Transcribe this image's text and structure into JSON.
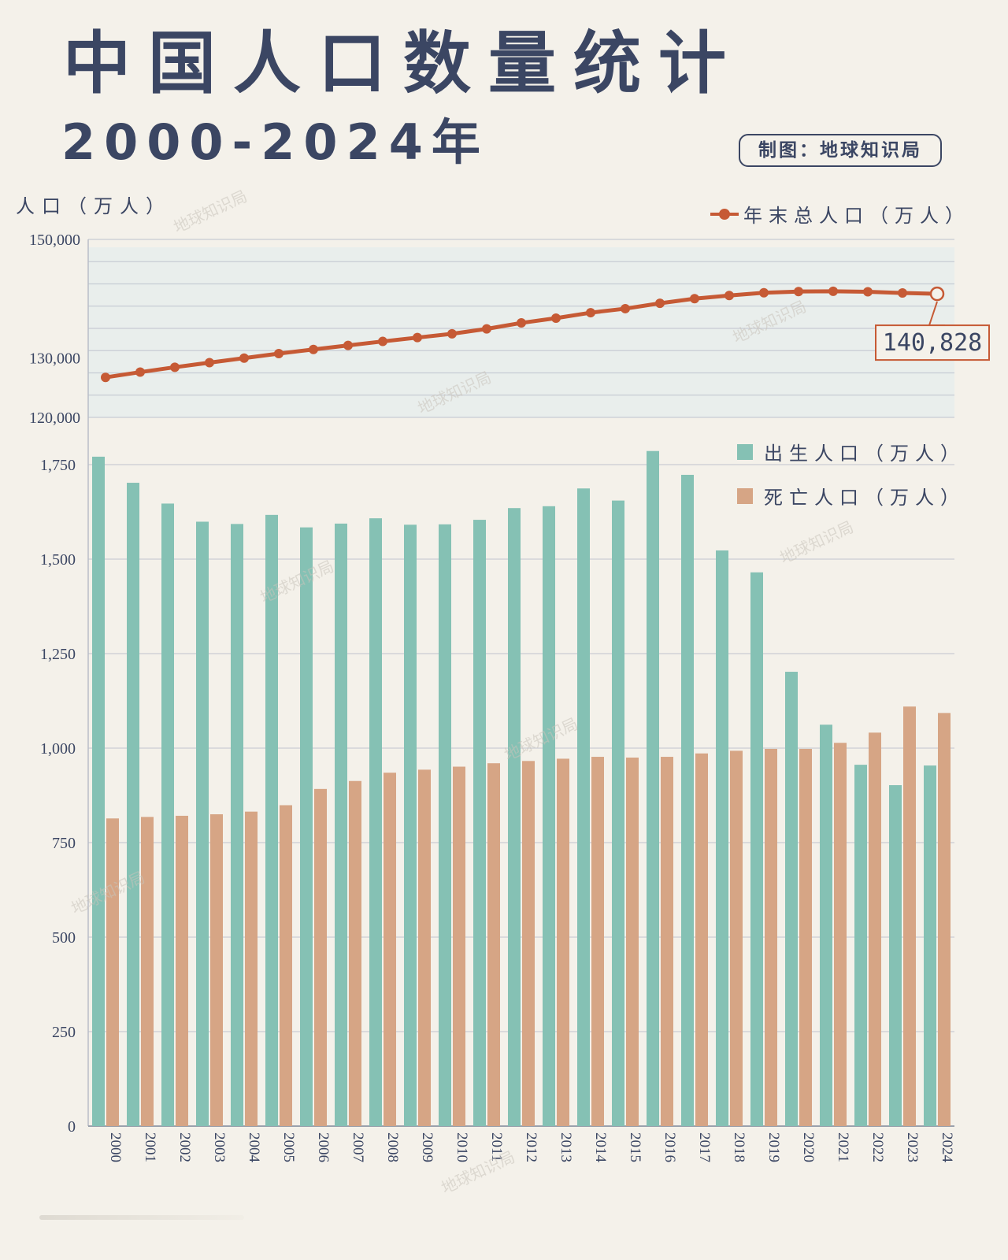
{
  "header": {
    "title": "中国人口数量统计",
    "subtitle": "2000-2024年",
    "credit": "制图：地球知识局"
  },
  "watermark": "地球知识局",
  "y_unit_label": "人口（万人）",
  "legend": {
    "total": "年末总人口（万人）",
    "births": "出生人口（万人）",
    "deaths": "死亡人口（万人）"
  },
  "colors": {
    "total_line": "#c65a35",
    "births_bar": "#85c1b4",
    "deaths_bar": "#d6a585",
    "text": "#3b4663",
    "line_panel_bg": "#e9eeec",
    "background": "#f4f1ea"
  },
  "callout": "140,828",
  "chart_data": [
    {
      "type": "line",
      "series_name": "年末总人口（万人）",
      "x": [
        "2000",
        "2001",
        "2002",
        "2003",
        "2004",
        "2005",
        "2006",
        "2007",
        "2008",
        "2009",
        "2010",
        "2011",
        "2012",
        "2013",
        "2014",
        "2015",
        "2016",
        "2017",
        "2018",
        "2019",
        "2020",
        "2021",
        "2022",
        "2023",
        "2024"
      ],
      "values": [
        126743,
        127627,
        128453,
        129227,
        129988,
        130756,
        131448,
        132129,
        132802,
        133450,
        134091,
        134916,
        135922,
        136726,
        137646,
        138326,
        139232,
        140011,
        140541,
        141008,
        141212,
        141260,
        141175,
        140967,
        140828
      ],
      "y_ticks": [
        "150,000",
        "130,000",
        "120,000"
      ],
      "annotation": "140,828"
    },
    {
      "type": "bar",
      "categories": [
        "2000",
        "2001",
        "2002",
        "2003",
        "2004",
        "2005",
        "2006",
        "2007",
        "2008",
        "2009",
        "2010",
        "2011",
        "2012",
        "2013",
        "2014",
        "2015",
        "2016",
        "2017",
        "2018",
        "2019",
        "2020",
        "2021",
        "2022",
        "2023",
        "2024"
      ],
      "series": [
        {
          "name": "出生人口（万人）",
          "values": [
            1771,
            1702,
            1647,
            1599,
            1593,
            1617,
            1584,
            1594,
            1608,
            1591,
            1592,
            1604,
            1635,
            1640,
            1687,
            1655,
            1786,
            1723,
            1523,
            1465,
            1202,
            1062,
            956,
            902,
            954
          ]
        },
        {
          "name": "死亡人口（万人）",
          "values": [
            814,
            818,
            821,
            825,
            832,
            849,
            892,
            913,
            935,
            943,
            951,
            960,
            966,
            972,
            977,
            975,
            977,
            986,
            993,
            998,
            998,
            1014,
            1041,
            1110,
            1093
          ]
        }
      ],
      "y_ticks": [
        "0",
        "250",
        "500",
        "750",
        "1,000",
        "1,250",
        "1,500",
        "1,750"
      ],
      "ylim": [
        0,
        1750
      ]
    }
  ]
}
